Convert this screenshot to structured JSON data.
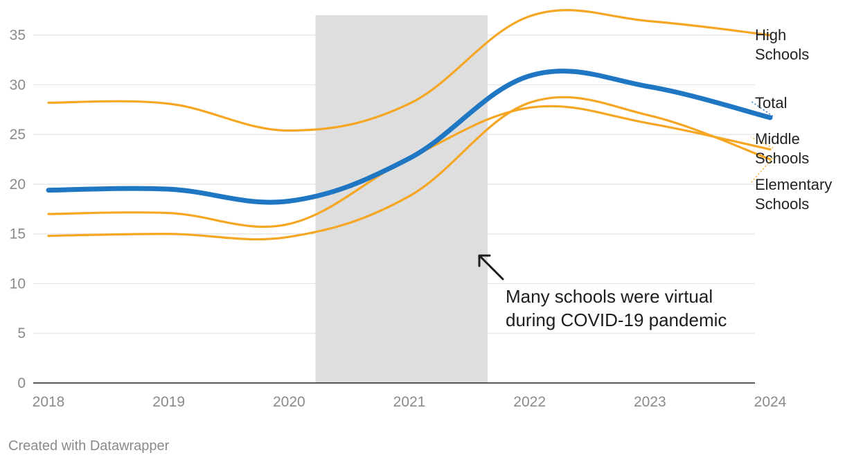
{
  "chart_data": {
    "type": "line",
    "x": [
      2018,
      2019,
      2020,
      2021,
      2022,
      2023,
      2024
    ],
    "xlim": [
      2018,
      2024
    ],
    "ylim": [
      0,
      37
    ],
    "yticks": [
      0,
      5,
      10,
      15,
      20,
      25,
      30,
      35
    ],
    "xticks": [
      "2018",
      "2019",
      "2020",
      "2021",
      "2022",
      "2023",
      "2024"
    ],
    "grid": "horizontal",
    "highlight_range": [
      2020.22,
      2021.65
    ],
    "series": [
      {
        "name": "High Schools",
        "label_lines": [
          "High",
          "Schools"
        ],
        "color": "#f5a623",
        "values": [
          28.2,
          28.1,
          25.4,
          28.1,
          36.9,
          36.4,
          35.0
        ]
      },
      {
        "name": "Total",
        "label_lines": [
          "Total"
        ],
        "color": "#1f77c4",
        "values": [
          19.4,
          19.5,
          18.3,
          22.6,
          30.9,
          29.8,
          26.7
        ]
      },
      {
        "name": "Middle Schools",
        "label_lines": [
          "Middle",
          "Schools"
        ],
        "color": "#f5a623",
        "values": [
          17.0,
          17.1,
          16.0,
          22.6,
          27.7,
          26.1,
          23.5
        ]
      },
      {
        "name": "Elementary Schools",
        "label_lines": [
          "Elementary",
          "Schools"
        ],
        "color": "#f5a623",
        "values": [
          14.8,
          15.0,
          14.7,
          18.8,
          28.2,
          26.9,
          22.5
        ]
      }
    ],
    "annotation": {
      "lines": [
        "Many schools were virtual",
        "during COVID-19 pandemic"
      ]
    }
  },
  "footer": {
    "credit": "Created with Datawrapper"
  }
}
